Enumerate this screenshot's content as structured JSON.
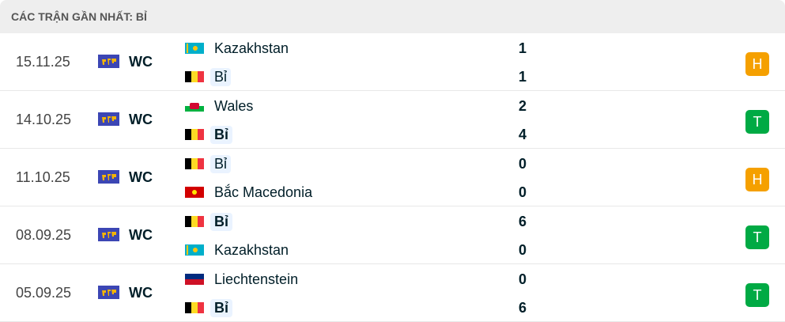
{
  "header": {
    "title": "CÁC TRẬN GẦN NHẤT: BỈ"
  },
  "colors": {
    "draw": "#f5a000",
    "win": "#00aa44",
    "highlight": "#eaf3ff"
  },
  "matches": [
    {
      "date": "15.11.25",
      "competition": "WC",
      "home": {
        "name": "Kazakhstan",
        "flag": "kazakhstan",
        "score": "1",
        "highlight": false,
        "bold": false
      },
      "away": {
        "name": "Bỉ",
        "flag": "belgium",
        "score": "1",
        "highlight": true,
        "bold": false
      },
      "result": "H"
    },
    {
      "date": "14.10.25",
      "competition": "WC",
      "home": {
        "name": "Wales",
        "flag": "wales",
        "score": "2",
        "highlight": false,
        "bold": false
      },
      "away": {
        "name": "Bỉ",
        "flag": "belgium",
        "score": "4",
        "highlight": true,
        "bold": true
      },
      "result": "T"
    },
    {
      "date": "11.10.25",
      "competition": "WC",
      "home": {
        "name": "Bỉ",
        "flag": "belgium",
        "score": "0",
        "highlight": true,
        "bold": false
      },
      "away": {
        "name": "Bắc Macedonia",
        "flag": "north-macedonia",
        "score": "0",
        "highlight": false,
        "bold": false
      },
      "result": "H"
    },
    {
      "date": "08.09.25",
      "competition": "WC",
      "home": {
        "name": "Bỉ",
        "flag": "belgium",
        "score": "6",
        "highlight": true,
        "bold": true
      },
      "away": {
        "name": "Kazakhstan",
        "flag": "kazakhstan",
        "score": "0",
        "highlight": false,
        "bold": false
      },
      "result": "T"
    },
    {
      "date": "05.09.25",
      "competition": "WC",
      "home": {
        "name": "Liechtenstein",
        "flag": "liechtenstein",
        "score": "0",
        "highlight": false,
        "bold": false
      },
      "away": {
        "name": "Bỉ",
        "flag": "belgium",
        "score": "6",
        "highlight": true,
        "bold": true
      },
      "result": "T"
    }
  ]
}
